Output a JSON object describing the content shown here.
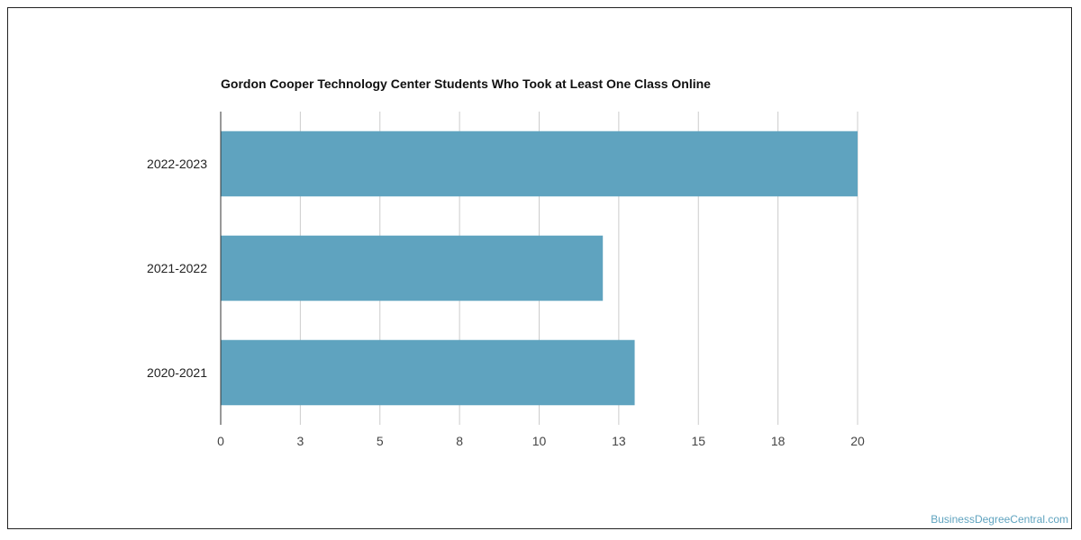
{
  "chart_data": {
    "type": "bar",
    "orientation": "horizontal",
    "title": "Gordon Cooper Technology Center Students Who Took at Least One Class Online",
    "categories": [
      "2022-2023",
      "2021-2022",
      "2020-2021"
    ],
    "values": [
      20,
      12,
      13
    ],
    "xlabel": "",
    "ylabel": "",
    "xlim": [
      0,
      20
    ],
    "x_ticks": [
      "0",
      "3",
      "5",
      "8",
      "10",
      "13",
      "15",
      "18",
      "20"
    ],
    "grid": "vertical",
    "bar_color": "#5fa3bf"
  },
  "watermark": "BusinessDegreeCentral.com"
}
